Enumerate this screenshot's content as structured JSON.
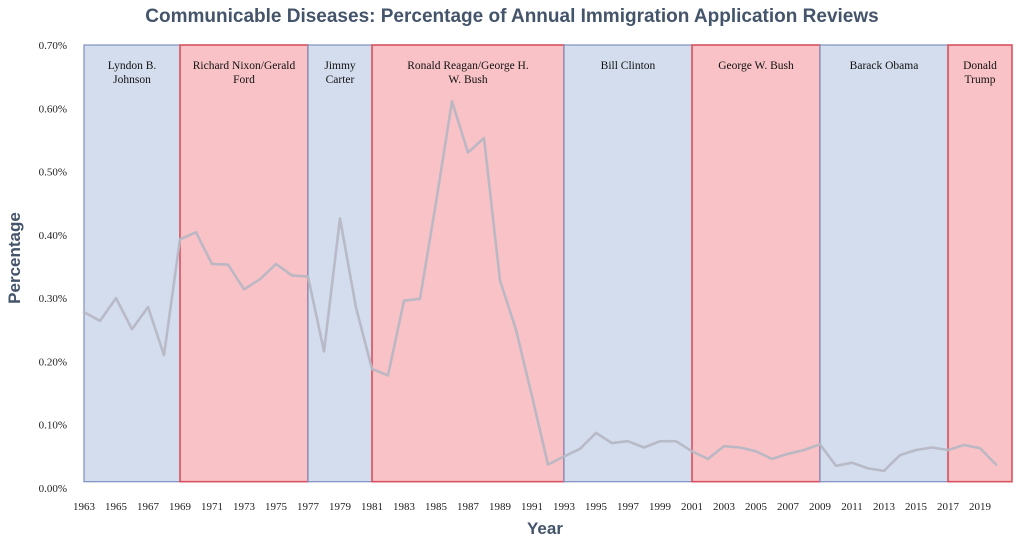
{
  "chart_data": {
    "type": "line",
    "title": "Communicable Diseases: Percentage of Annual Immigration Application Reviews",
    "xlabel": "Year",
    "ylabel": "Percentage",
    "xlim": [
      1963,
      2021
    ],
    "ylim": [
      0,
      0.7
    ],
    "yticks": [
      "0.00%",
      "0.10%",
      "0.20%",
      "0.30%",
      "0.40%",
      "0.50%",
      "0.60%",
      "0.70%"
    ],
    "xticks": [
      "1963",
      "1965",
      "1967",
      "1969",
      "1971",
      "1973",
      "1975",
      "1977",
      "1979",
      "1981",
      "1983",
      "1985",
      "1987",
      "1989",
      "1991",
      "1993",
      "1995",
      "1997",
      "1999",
      "2001",
      "2003",
      "2005",
      "2007",
      "2009",
      "2011",
      "2013",
      "2015",
      "2017",
      "2019"
    ],
    "grid": false,
    "line_color": "#b7b7c4",
    "eras": [
      {
        "label": "Lyndon B. Johnson",
        "start": 1963,
        "end": 1969,
        "party": "D"
      },
      {
        "label": "Richard Nixon/Gerald Ford",
        "start": 1969,
        "end": 1977,
        "party": "R"
      },
      {
        "label": "Jimmy Carter",
        "start": 1977,
        "end": 1981,
        "party": "D"
      },
      {
        "label": "Ronald Reagan/George H. W. Bush",
        "start": 1981,
        "end": 1993,
        "party": "R"
      },
      {
        "label": "Bill Clinton",
        "start": 1993,
        "end": 2001,
        "party": "D"
      },
      {
        "label": "George W. Bush",
        "start": 2001,
        "end": 2009,
        "party": "R"
      },
      {
        "label": "Barack Obama",
        "start": 2009,
        "end": 2017,
        "party": "D"
      },
      {
        "label": "Donald Trump",
        "start": 2017,
        "end": 2021,
        "party": "R"
      }
    ],
    "era_colors": {
      "D_fill": "#d3ddee",
      "D_stroke": "#7f8fbf",
      "R_fill": "#f9c2c6",
      "R_stroke": "#d9525f"
    },
    "x": [
      1963,
      1964,
      1965,
      1966,
      1967,
      1968,
      1969,
      1970,
      1971,
      1972,
      1973,
      1974,
      1975,
      1976,
      1977,
      1978,
      1979,
      1980,
      1981,
      1982,
      1983,
      1984,
      1985,
      1986,
      1987,
      1988,
      1989,
      1990,
      1991,
      1992,
      1993,
      1994,
      1995,
      1996,
      1997,
      1998,
      1999,
      2000,
      2001,
      2002,
      2003,
      2004,
      2005,
      2006,
      2007,
      2008,
      2009,
      2010,
      2011,
      2012,
      2013,
      2014,
      2015,
      2016,
      2017,
      2018,
      2019,
      2020
    ],
    "values": [
      0.278,
      0.264,
      0.3,
      0.251,
      0.286,
      0.21,
      0.393,
      0.404,
      0.354,
      0.353,
      0.314,
      0.33,
      0.354,
      0.336,
      0.334,
      0.216,
      0.426,
      0.285,
      0.188,
      0.178,
      0.296,
      0.299,
      0.451,
      0.611,
      0.53,
      0.553,
      0.328,
      0.25,
      0.145,
      0.037,
      0.05,
      0.062,
      0.087,
      0.071,
      0.074,
      0.064,
      0.074,
      0.074,
      0.058,
      0.046,
      0.066,
      0.064,
      0.058,
      0.046,
      0.054,
      0.06,
      0.069,
      0.035,
      0.04,
      0.031,
      0.027,
      0.052,
      0.06,
      0.064,
      0.06,
      0.068,
      0.063,
      0.037
    ]
  }
}
